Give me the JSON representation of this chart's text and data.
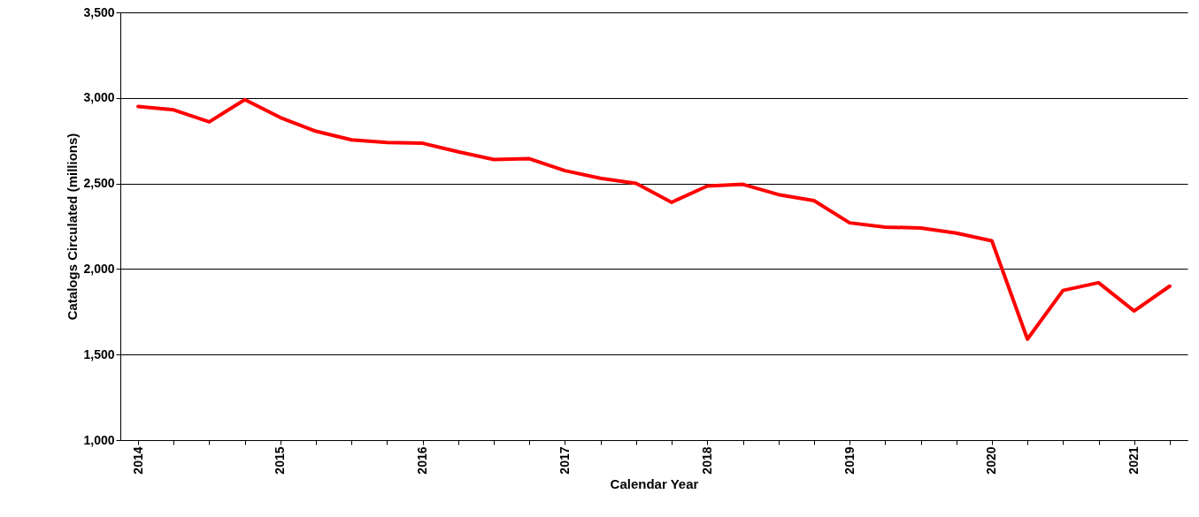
{
  "chart_data": {
    "type": "line",
    "xlabel": "Calendar Year",
    "ylabel": "Catalogs Circulated (millions)",
    "categories": [
      "2014",
      null,
      null,
      null,
      "2015",
      null,
      null,
      null,
      "2016",
      null,
      null,
      null,
      "2017",
      null,
      null,
      null,
      "2018",
      null,
      null,
      null,
      "2019",
      null,
      null,
      null,
      "2020",
      null,
      null,
      null,
      "2021",
      null
    ],
    "series": [
      {
        "color": "#ff0000",
        "values": [
          2950,
          2930,
          2860,
          2990,
          2885,
          2805,
          2755,
          2740,
          2735,
          2685,
          2640,
          2645,
          2575,
          2530,
          2500,
          2390,
          2485,
          2495,
          2435,
          2400,
          2270,
          2245,
          2240,
          2210,
          2165,
          1590,
          1875,
          1920,
          1755,
          1900
        ]
      }
    ],
    "ylim": [
      1000,
      3500
    ],
    "yticks": [
      {
        "value": 1000,
        "label": "1,000"
      },
      {
        "value": 1500,
        "label": "1,500"
      },
      {
        "value": 2000,
        "label": "2,000"
      },
      {
        "value": 2500,
        "label": "2,500"
      },
      {
        "value": 3000,
        "label": "3,000"
      },
      {
        "value": 3500,
        "label": "3,500"
      }
    ],
    "grid": "y",
    "marker": "none",
    "line_style": "solid"
  }
}
